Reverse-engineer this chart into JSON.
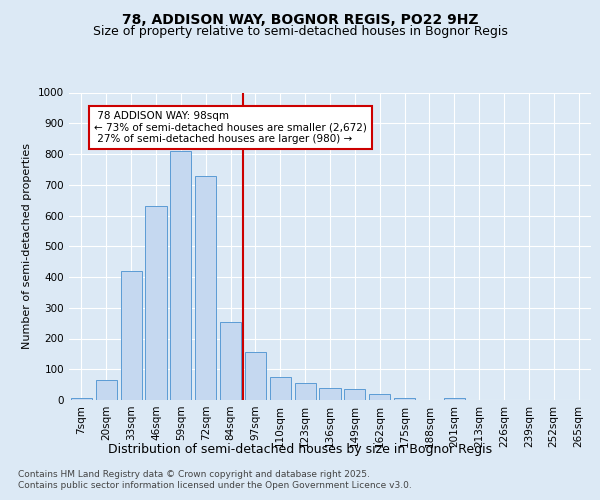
{
  "title": "78, ADDISON WAY, BOGNOR REGIS, PO22 9HZ",
  "subtitle": "Size of property relative to semi-detached houses in Bognor Regis",
  "xlabel": "Distribution of semi-detached houses by size in Bognor Regis",
  "ylabel": "Number of semi-detached properties",
  "categories": [
    "7sqm",
    "20sqm",
    "33sqm",
    "46sqm",
    "59sqm",
    "72sqm",
    "84sqm",
    "97sqm",
    "110sqm",
    "123sqm",
    "136sqm",
    "149sqm",
    "162sqm",
    "175sqm",
    "188sqm",
    "201sqm",
    "213sqm",
    "226sqm",
    "239sqm",
    "252sqm",
    "265sqm"
  ],
  "values": [
    5,
    65,
    420,
    630,
    810,
    730,
    255,
    155,
    75,
    55,
    40,
    35,
    20,
    5,
    0,
    5,
    0,
    0,
    0,
    0,
    0
  ],
  "bar_color": "#c5d8f0",
  "bar_edge_color": "#5b9bd5",
  "property_label": "78 ADDISON WAY: 98sqm",
  "pct_smaller": 73,
  "count_smaller": 2672,
  "pct_larger": 27,
  "count_larger": 980,
  "vline_color": "#cc0000",
  "annotation_box_color": "#cc0000",
  "ylim": [
    0,
    1000
  ],
  "yticks": [
    0,
    100,
    200,
    300,
    400,
    500,
    600,
    700,
    800,
    900,
    1000
  ],
  "bg_color": "#dce9f5",
  "plot_bg_color": "#dce9f5",
  "footer_line1": "Contains HM Land Registry data © Crown copyright and database right 2025.",
  "footer_line2": "Contains public sector information licensed under the Open Government Licence v3.0.",
  "title_fontsize": 10,
  "subtitle_fontsize": 9,
  "xlabel_fontsize": 9,
  "ylabel_fontsize": 8,
  "tick_fontsize": 7.5,
  "annotation_fontsize": 7.5,
  "footer_fontsize": 6.5,
  "vline_index": 7
}
